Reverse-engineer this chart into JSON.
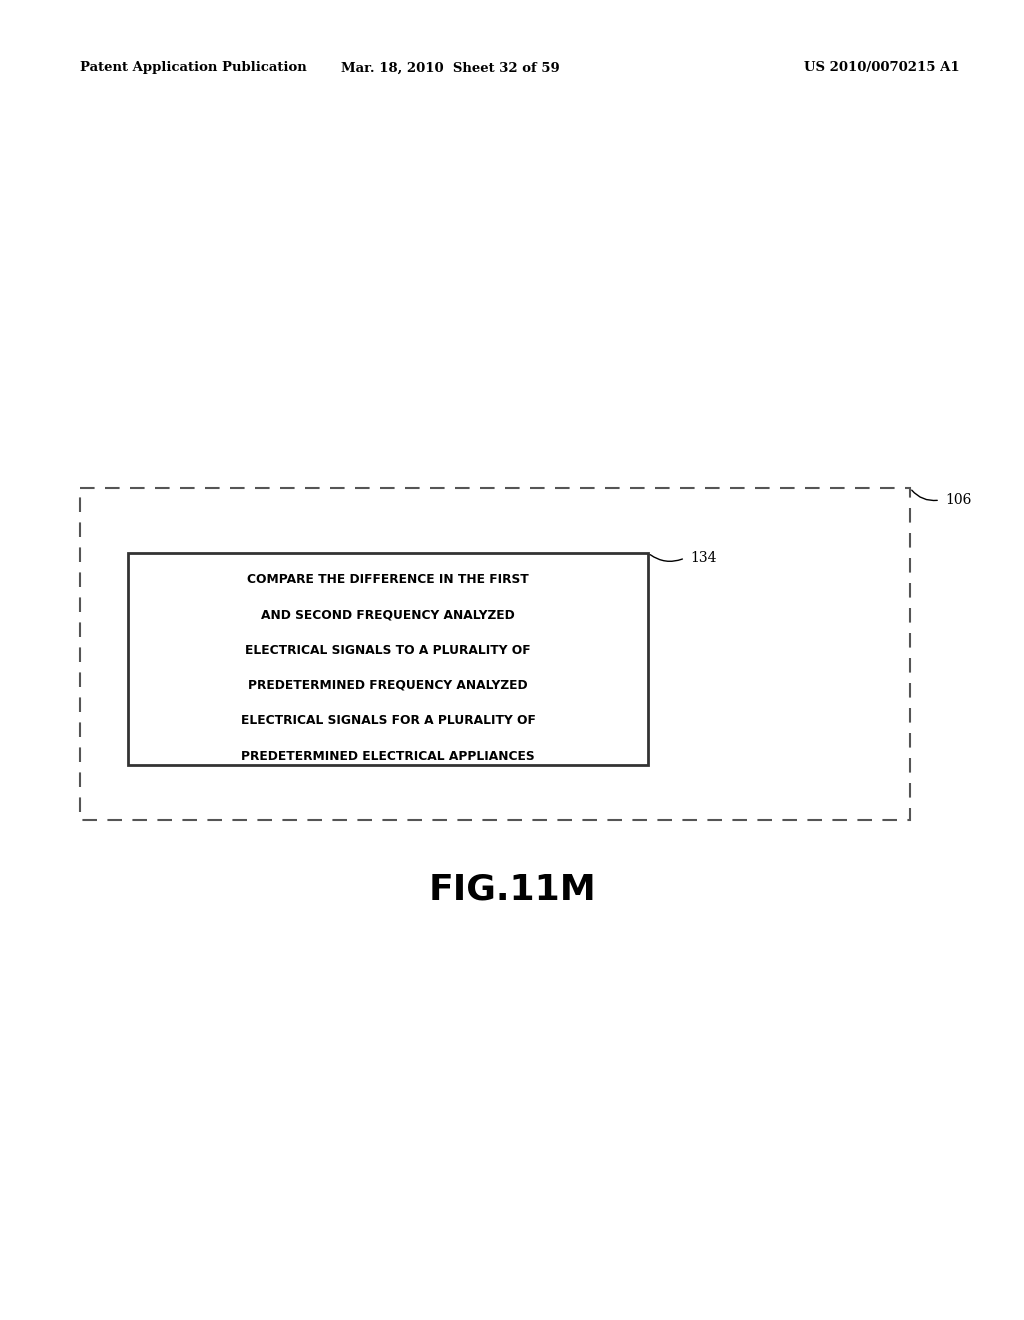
{
  "header_left": "Patent Application Publication",
  "header_mid": "Mar. 18, 2010  Sheet 32 of 59",
  "header_right": "US 2010/0070215 A1",
  "fig_label": "FIG.11M",
  "box_text_lines": [
    "COMPARE THE DIFFERENCE IN THE FIRST",
    "AND SECOND FREQUENCY ANALYZED",
    "ELECTRICAL SIGNALS TO A PLURALITY OF",
    "PREDETERMINED FREQUENCY ANALYZED",
    "ELECTRICAL SIGNALS FOR A PLURALITY OF",
    "PREDETERMINED ELECTRICAL APPLIANCES"
  ],
  "label_106": "106",
  "label_134": "134",
  "bg_color": "#ffffff",
  "text_color": "#000000"
}
